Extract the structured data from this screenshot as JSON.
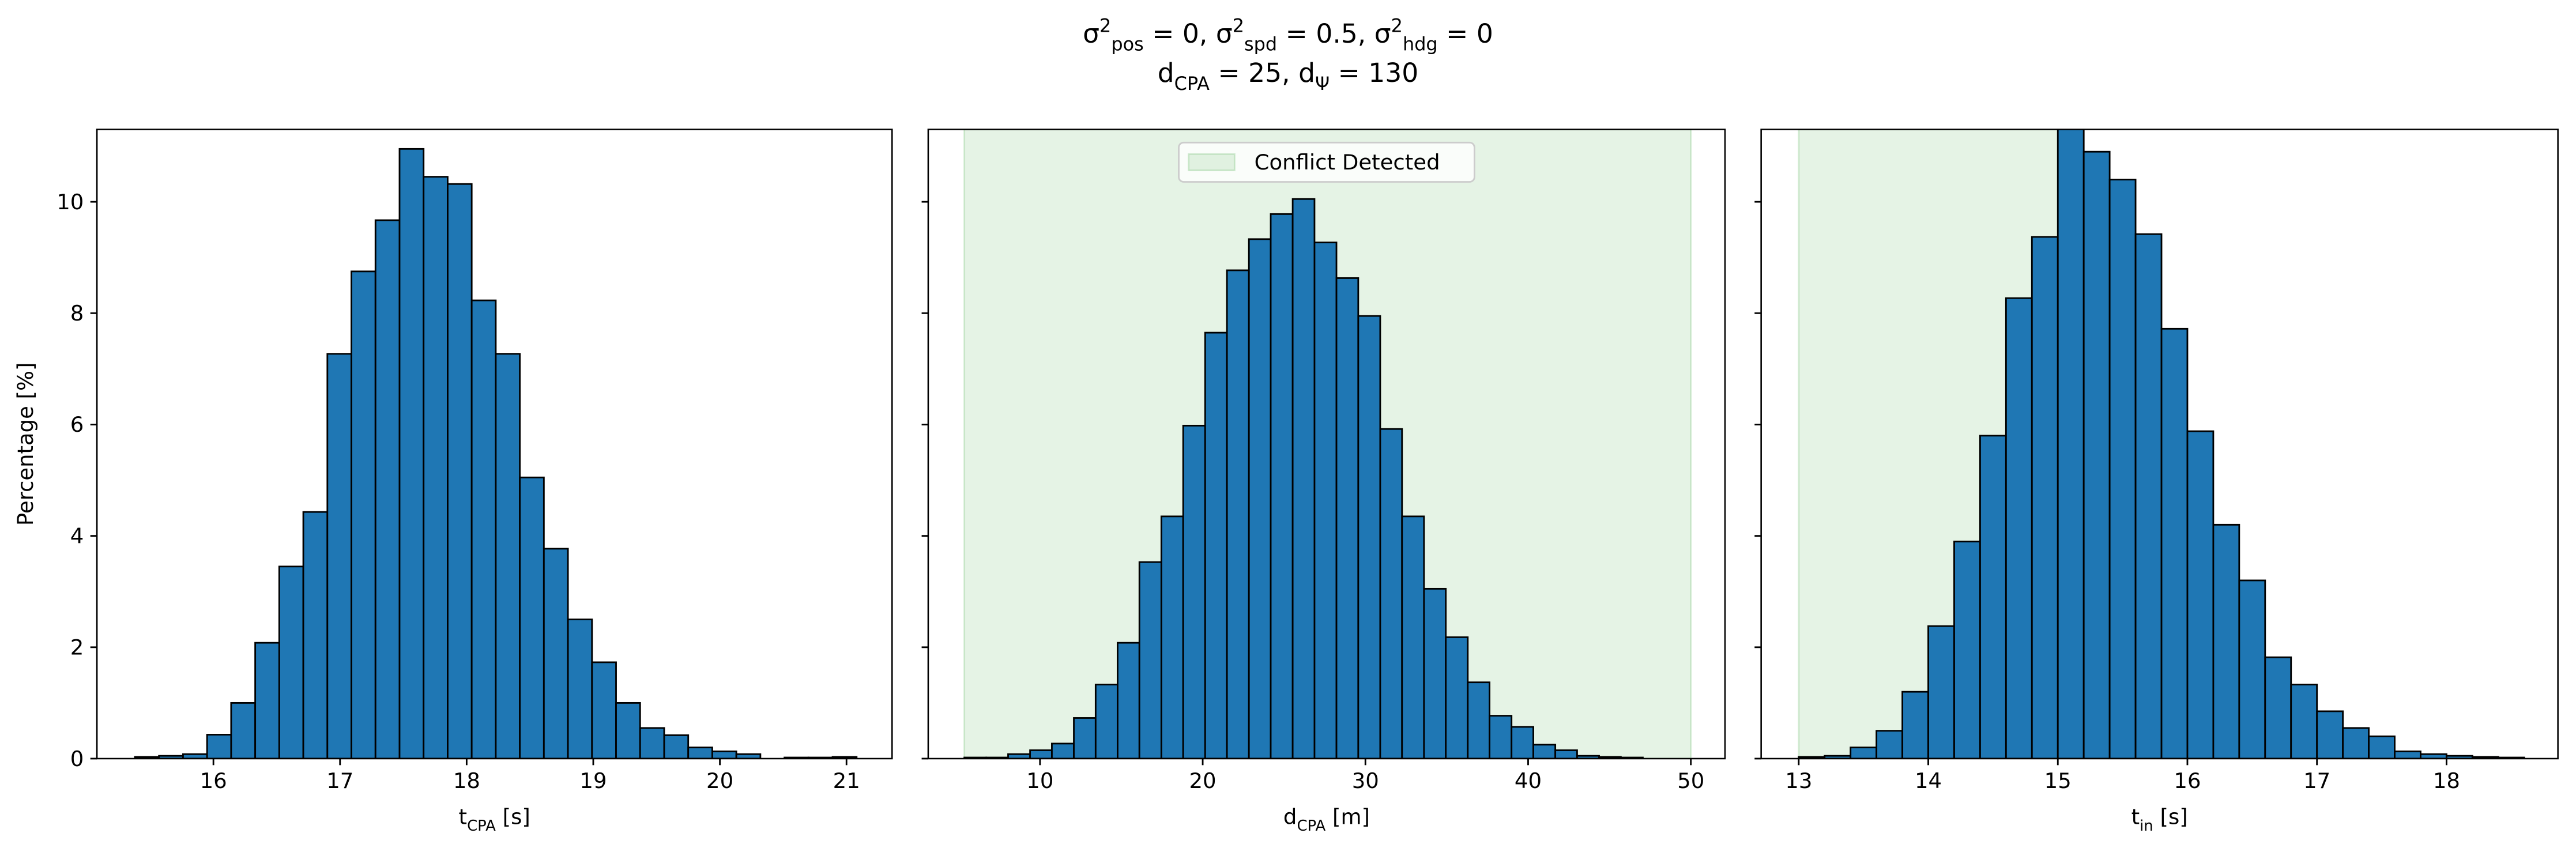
{
  "suptitle": [
    [
      {
        "text": "σ"
      },
      {
        "text": "2",
        "script": "sup"
      },
      {
        "text": "pos",
        "script": "sub"
      },
      {
        "text": " = 0, σ"
      },
      {
        "text": "2",
        "script": "sup"
      },
      {
        "text": "spd",
        "script": "sub"
      },
      {
        "text": " = 0.5, σ"
      },
      {
        "text": "2",
        "script": "sup"
      },
      {
        "text": "hdg",
        "script": "sub"
      },
      {
        "text": " = 0"
      }
    ],
    [
      {
        "text": "d"
      },
      {
        "text": "CPA",
        "script": "sub"
      },
      {
        "text": " = 25, d"
      },
      {
        "text": "Ψ",
        "script": "sub"
      },
      {
        "text": " = 130"
      }
    ]
  ],
  "chart_data": [
    {
      "type": "histogram",
      "color": "#1f77b4",
      "edgecolor": "#000000",
      "ylabel": "Percentage [%]",
      "xlabel": [
        {
          "text": "t"
        },
        {
          "text": "CPA",
          "script": "sub"
        },
        {
          "text": " [s]"
        }
      ],
      "bins": [
        15.38,
        15.57,
        15.76,
        15.95,
        16.14,
        16.33,
        16.52,
        16.71,
        16.9,
        17.09,
        17.28,
        17.47,
        17.66,
        17.85,
        18.04,
        18.23,
        18.42,
        18.61,
        18.8,
        18.99,
        19.18,
        19.37,
        19.56,
        19.75,
        19.94,
        20.13,
        20.32,
        20.51,
        20.7,
        20.89,
        21.08
      ],
      "values": [
        0.03,
        0.05,
        0.08,
        0.43,
        1.0,
        2.08,
        3.45,
        4.43,
        7.27,
        8.75,
        9.67,
        10.95,
        10.45,
        10.32,
        8.23,
        7.27,
        5.05,
        3.77,
        2.5,
        1.73,
        1.0,
        0.55,
        0.42,
        0.2,
        0.13,
        0.08,
        0.0,
        0.02,
        0.02,
        0.03
      ],
      "xlim": [
        15.08,
        21.36
      ],
      "xticks": [
        16,
        17,
        18,
        19,
        20,
        21
      ],
      "ylim": [
        0,
        11.3
      ],
      "yticks": [
        0,
        2,
        4,
        6,
        8,
        10
      ]
    },
    {
      "type": "histogram",
      "color": "#1f77b4",
      "edgecolor": "#000000",
      "xlabel": [
        {
          "text": "d"
        },
        {
          "text": "CPA",
          "script": "sub"
        },
        {
          "text": " [m]"
        }
      ],
      "shade": {
        "label": "Conflict Detected",
        "range": [
          5.35,
          50
        ],
        "color": "#2ca02c"
      },
      "legend": "upper center",
      "bins": [
        5.35,
        6.7,
        8.04,
        9.39,
        10.73,
        12.08,
        13.42,
        14.77,
        16.11,
        17.46,
        18.8,
        20.15,
        21.49,
        22.84,
        24.18,
        25.53,
        26.87,
        28.22,
        29.56,
        30.91,
        32.25,
        33.6,
        34.94,
        36.29,
        37.63,
        38.98,
        40.32,
        41.67,
        43.01,
        44.36,
        45.7,
        47.05
      ],
      "values": [
        0.02,
        0.02,
        0.08,
        0.15,
        0.27,
        0.73,
        1.33,
        2.08,
        3.53,
        4.35,
        5.98,
        7.65,
        8.77,
        9.33,
        9.78,
        10.05,
        9.27,
        8.63,
        7.95,
        5.92,
        4.35,
        3.05,
        2.18,
        1.37,
        0.77,
        0.57,
        0.25,
        0.15,
        0.05,
        0.03,
        0.02
      ],
      "xlim": [
        3.13,
        52.1
      ],
      "xticks": [
        10,
        20,
        30,
        40,
        50
      ],
      "ylim": [
        0,
        11.3
      ],
      "yticks": [
        0,
        2,
        4,
        6,
        8,
        10
      ]
    },
    {
      "type": "histogram",
      "color": "#1f77b4",
      "edgecolor": "#000000",
      "xlabel": [
        {
          "text": "t"
        },
        {
          "text": "in",
          "script": "sub"
        },
        {
          "text": " [s]"
        }
      ],
      "shade": {
        "range": [
          13.0,
          15.12
        ],
        "color": "#2ca02c"
      },
      "bins": [
        13.0,
        13.2,
        13.4,
        13.6,
        13.8,
        14.0,
        14.2,
        14.4,
        14.6,
        14.8,
        15.0,
        15.2,
        15.4,
        15.6,
        15.8,
        16.0,
        16.2,
        16.4,
        16.6,
        16.8,
        17.0,
        17.2,
        17.4,
        17.6,
        17.8,
        18.0,
        18.2,
        18.4,
        18.6
      ],
      "values": [
        0.03,
        0.05,
        0.2,
        0.5,
        1.2,
        2.38,
        3.9,
        5.8,
        8.27,
        9.37,
        11.5,
        10.9,
        10.4,
        9.42,
        7.72,
        5.88,
        4.2,
        3.2,
        1.82,
        1.33,
        0.85,
        0.55,
        0.4,
        0.13,
        0.08,
        0.05,
        0.03,
        0.02
      ],
      "xlim": [
        12.71,
        18.86
      ],
      "xticks": [
        13,
        14,
        15,
        16,
        17,
        18
      ],
      "ylim": [
        0,
        11.3
      ],
      "yticks": [
        0,
        2,
        4,
        6,
        8,
        10
      ]
    }
  ]
}
